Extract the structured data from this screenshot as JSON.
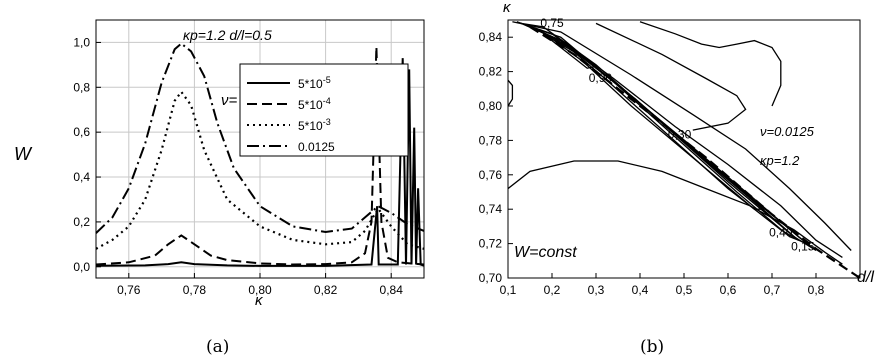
{
  "chart_data": [
    {
      "panel": "(a)",
      "type": "line",
      "annotation": "κp=1.2   d/l=0.5",
      "xlabel": "κ",
      "ylabel": "W",
      "xlim": [
        0.75,
        0.85
      ],
      "ylim": [
        -0.05,
        1.1
      ],
      "x_ticks": [
        "0,76",
        "0,78",
        "0,80",
        "0,82",
        "0,84"
      ],
      "y_ticks": [
        "0,0",
        "0,2",
        "0,4",
        "0,6",
        "0,8",
        "1,0"
      ],
      "legend_title": "ν=",
      "grid": true,
      "series": [
        {
          "name": "5*10-5",
          "dash": "solid",
          "points": [
            [
              0.75,
              0.005
            ],
            [
              0.765,
              0.006
            ],
            [
              0.772,
              0.012
            ],
            [
              0.776,
              0.02
            ],
            [
              0.78,
              0.012
            ],
            [
              0.79,
              0.006
            ],
            [
              0.8,
              0.004
            ],
            [
              0.82,
              0.004
            ],
            [
              0.834,
              0.01
            ],
            [
              0.8357,
              0.27
            ],
            [
              0.8362,
              0.01
            ],
            [
              0.842,
              0.01
            ],
            [
              0.8435,
              0.93
            ],
            [
              0.8445,
              0.01
            ],
            [
              0.8455,
              0.88
            ],
            [
              0.8462,
              0.01
            ],
            [
              0.847,
              0.62
            ],
            [
              0.8476,
              0.01
            ],
            [
              0.8482,
              0.35
            ],
            [
              0.849,
              0.01
            ],
            [
              0.85,
              0.005
            ]
          ]
        },
        {
          "name": "5*10-4",
          "dash": "dash",
          "points": [
            [
              0.75,
              0.01
            ],
            [
              0.76,
              0.02
            ],
            [
              0.768,
              0.05
            ],
            [
              0.772,
              0.1
            ],
            [
              0.776,
              0.14
            ],
            [
              0.78,
              0.1
            ],
            [
              0.785,
              0.05
            ],
            [
              0.79,
              0.03
            ],
            [
              0.8,
              0.015
            ],
            [
              0.81,
              0.01
            ],
            [
              0.82,
              0.012
            ],
            [
              0.828,
              0.02
            ],
            [
              0.832,
              0.06
            ],
            [
              0.834,
              0.2
            ],
            [
              0.8355,
              0.98
            ],
            [
              0.837,
              0.2
            ],
            [
              0.839,
              0.04
            ],
            [
              0.842,
              0.02
            ],
            [
              0.85,
              0.01
            ]
          ]
        },
        {
          "name": "5*10-3",
          "dash": "dot",
          "points": [
            [
              0.75,
              0.08
            ],
            [
              0.755,
              0.12
            ],
            [
              0.76,
              0.18
            ],
            [
              0.765,
              0.3
            ],
            [
              0.77,
              0.52
            ],
            [
              0.774,
              0.74
            ],
            [
              0.776,
              0.78
            ],
            [
              0.779,
              0.72
            ],
            [
              0.783,
              0.52
            ],
            [
              0.79,
              0.3
            ],
            [
              0.8,
              0.18
            ],
            [
              0.81,
              0.12
            ],
            [
              0.82,
              0.1
            ],
            [
              0.828,
              0.11
            ],
            [
              0.832,
              0.16
            ],
            [
              0.836,
              0.26
            ],
            [
              0.84,
              0.18
            ],
            [
              0.845,
              0.1
            ],
            [
              0.85,
              0.08
            ]
          ]
        },
        {
          "name": "0.0125",
          "dash": "dashdot",
          "points": [
            [
              0.75,
              0.15
            ],
            [
              0.755,
              0.22
            ],
            [
              0.76,
              0.35
            ],
            [
              0.765,
              0.55
            ],
            [
              0.77,
              0.82
            ],
            [
              0.774,
              0.97
            ],
            [
              0.776,
              0.995
            ],
            [
              0.779,
              0.96
            ],
            [
              0.783,
              0.85
            ],
            [
              0.787,
              0.64
            ],
            [
              0.792,
              0.44
            ],
            [
              0.8,
              0.27
            ],
            [
              0.81,
              0.18
            ],
            [
              0.82,
              0.155
            ],
            [
              0.828,
              0.17
            ],
            [
              0.832,
              0.22
            ],
            [
              0.836,
              0.27
            ],
            [
              0.84,
              0.24
            ],
            [
              0.845,
              0.19
            ],
            [
              0.85,
              0.16
            ]
          ]
        }
      ]
    },
    {
      "panel": "(b)",
      "type": "contour",
      "annotation_1": "ν=0.0125",
      "annotation_2": "κp=1.2",
      "label_inside": "W=const",
      "xlabel": "d/l",
      "ylabel": "κ",
      "xlim": [
        0.1,
        0.9
      ],
      "ylim": [
        0.7,
        0.85
      ],
      "x_ticks": [
        "0,1",
        "0,2",
        "0,3",
        "0,4",
        "0,5",
        "0,6",
        "0,7",
        "0,8"
      ],
      "y_ticks": [
        "0,70",
        "0,72",
        "0,74",
        "0,76",
        "0,78",
        "0,80",
        "0,82",
        "0,84"
      ],
      "contour_labels": [
        {
          "text": "0,75",
          "x": 0.2,
          "y": 0.846
        },
        {
          "text": "0,90",
          "x": 0.31,
          "y": 0.814
        },
        {
          "text": "0,30",
          "x": 0.49,
          "y": 0.781
        },
        {
          "text": "0,40",
          "x": 0.72,
          "y": 0.724
        },
        {
          "text": "0,15",
          "x": 0.77,
          "y": 0.716
        }
      ],
      "ridge_line": [
        [
          0.15,
          0.846
        ],
        [
          0.25,
          0.83
        ],
        [
          0.4,
          0.8
        ],
        [
          0.55,
          0.77
        ],
        [
          0.7,
          0.737
        ],
        [
          0.8,
          0.717
        ],
        [
          0.9,
          0.7
        ]
      ],
      "contours": [
        [
          [
            0.1,
            0.752
          ],
          [
            0.15,
            0.762
          ],
          [
            0.25,
            0.768
          ],
          [
            0.35,
            0.768
          ],
          [
            0.45,
            0.762
          ],
          [
            0.55,
            0.752
          ],
          [
            0.65,
            0.742
          ],
          [
            0.75,
            0.728
          ],
          [
            0.82,
            0.715
          ],
          [
            0.86,
            0.708
          ]
        ],
        [
          [
            0.13,
            0.848
          ],
          [
            0.22,
            0.838
          ],
          [
            0.35,
            0.812
          ],
          [
            0.5,
            0.78
          ],
          [
            0.65,
            0.748
          ],
          [
            0.76,
            0.724
          ],
          [
            0.8,
            0.716
          ],
          [
            0.75,
            0.724
          ],
          [
            0.6,
            0.756
          ],
          [
            0.45,
            0.79
          ],
          [
            0.3,
            0.824
          ],
          [
            0.18,
            0.846
          ],
          [
            0.13,
            0.848
          ]
        ],
        [
          [
            0.14,
            0.847
          ],
          [
            0.23,
            0.837
          ],
          [
            0.36,
            0.81
          ],
          [
            0.52,
            0.776
          ],
          [
            0.66,
            0.745
          ],
          [
            0.78,
            0.72
          ],
          [
            0.74,
            0.724
          ],
          [
            0.62,
            0.75
          ],
          [
            0.48,
            0.782
          ],
          [
            0.34,
            0.814
          ],
          [
            0.22,
            0.84
          ],
          [
            0.14,
            0.847
          ]
        ],
        [
          [
            0.16,
            0.845
          ],
          [
            0.25,
            0.833
          ],
          [
            0.38,
            0.806
          ],
          [
            0.53,
            0.773
          ],
          [
            0.67,
            0.742
          ],
          [
            0.76,
            0.722
          ],
          [
            0.72,
            0.728
          ],
          [
            0.6,
            0.752
          ],
          [
            0.46,
            0.784
          ],
          [
            0.32,
            0.816
          ],
          [
            0.22,
            0.838
          ],
          [
            0.16,
            0.845
          ]
        ],
        [
          [
            0.18,
            0.842
          ],
          [
            0.26,
            0.83
          ],
          [
            0.39,
            0.804
          ],
          [
            0.54,
            0.77
          ],
          [
            0.68,
            0.74
          ],
          [
            0.66,
            0.74
          ],
          [
            0.52,
            0.77
          ],
          [
            0.38,
            0.8
          ],
          [
            0.27,
            0.826
          ],
          [
            0.2,
            0.839
          ],
          [
            0.18,
            0.842
          ]
        ],
        [
          [
            0.19,
            0.84
          ],
          [
            0.24,
            0.834
          ],
          [
            0.3,
            0.823
          ],
          [
            0.28,
            0.822
          ],
          [
            0.22,
            0.834
          ],
          [
            0.19,
            0.84
          ]
        ],
        [
          [
            0.12,
            0.849
          ],
          [
            0.2,
            0.842
          ],
          [
            0.34,
            0.816
          ],
          [
            0.48,
            0.788
          ],
          [
            0.6,
            0.766
          ],
          [
            0.72,
            0.742
          ],
          [
            0.8,
            0.722
          ],
          [
            0.86,
            0.712
          ]
        ],
        [
          [
            0.11,
            0.849
          ],
          [
            0.22,
            0.843
          ],
          [
            0.38,
            0.818
          ],
          [
            0.52,
            0.795
          ],
          [
            0.64,
            0.775
          ],
          [
            0.74,
            0.752
          ],
          [
            0.82,
            0.732
          ],
          [
            0.88,
            0.716
          ]
        ],
        [
          [
            0.3,
            0.848
          ],
          [
            0.45,
            0.83
          ],
          [
            0.55,
            0.816
          ],
          [
            0.62,
            0.806
          ],
          [
            0.64,
            0.798
          ],
          [
            0.6,
            0.79
          ],
          [
            0.52,
            0.786
          ]
        ],
        [
          [
            0.4,
            0.849
          ],
          [
            0.48,
            0.842
          ],
          [
            0.54,
            0.836
          ],
          [
            0.58,
            0.834
          ],
          [
            0.62,
            0.836
          ],
          [
            0.66,
            0.838
          ],
          [
            0.7,
            0.834
          ],
          [
            0.72,
            0.826
          ],
          [
            0.72,
            0.812
          ],
          [
            0.7,
            0.8
          ]
        ],
        [
          [
            0.1,
            0.8
          ],
          [
            0.11,
            0.804
          ],
          [
            0.11,
            0.812
          ],
          [
            0.1,
            0.815
          ]
        ]
      ]
    }
  ],
  "captions": {
    "a": "(a)",
    "b": "(b)"
  }
}
